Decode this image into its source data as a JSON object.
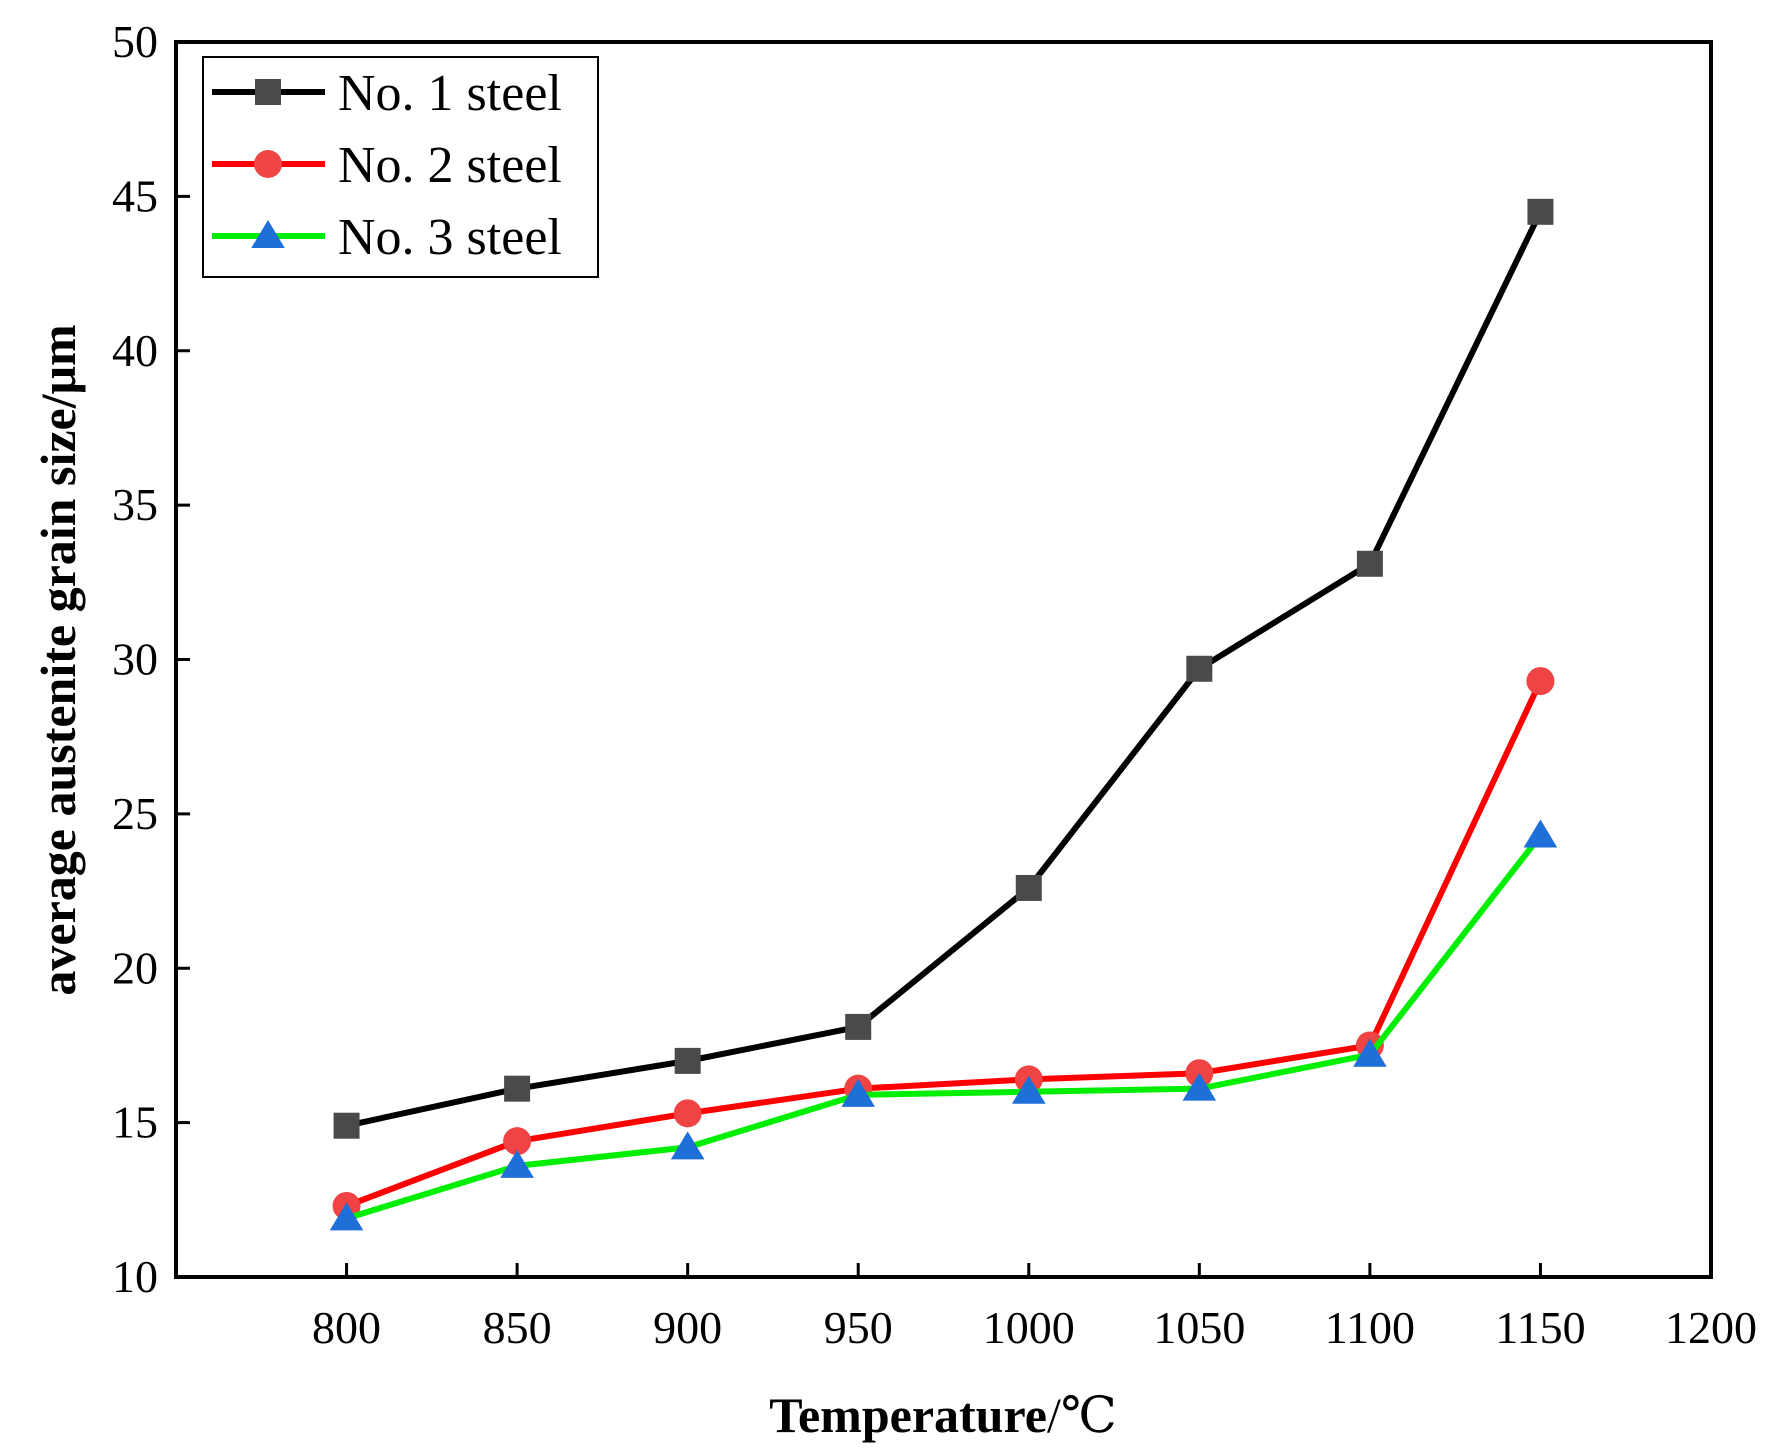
{
  "chart_data": {
    "type": "line",
    "title": "",
    "xlabel": "Temperature",
    "xlabel_unit": "/℃",
    "ylabel": "average austenite grain size/μm",
    "xlim": [
      750,
      1200
    ],
    "ylim": [
      10,
      50
    ],
    "x_ticks": [
      800,
      850,
      900,
      950,
      1000,
      1050,
      1100,
      1150,
      1200
    ],
    "y_ticks": [
      10,
      15,
      20,
      25,
      30,
      35,
      40,
      45,
      50
    ],
    "x": [
      800,
      850,
      900,
      950,
      1000,
      1050,
      1100,
      1150
    ],
    "grid": false,
    "legend_position": "top-left",
    "series": [
      {
        "name": "No. 1 steel",
        "values": [
          14.9,
          16.1,
          17.0,
          18.1,
          22.6,
          29.7,
          33.1,
          44.5
        ],
        "line_color": "#000000",
        "marker_color": "#4a4a4a",
        "marker": "square"
      },
      {
        "name": "No. 2 steel",
        "values": [
          12.3,
          14.4,
          15.3,
          16.1,
          16.4,
          16.6,
          17.5,
          29.3
        ],
        "line_color": "#ff0000",
        "marker_color": "#f04343",
        "marker": "circle"
      },
      {
        "name": "No. 3 steel",
        "values": [
          11.9,
          13.6,
          14.2,
          15.9,
          16.0,
          16.1,
          17.2,
          24.3
        ],
        "line_color": "#00ee00",
        "marker_color": "#1f6fd8",
        "marker": "triangle"
      }
    ]
  }
}
